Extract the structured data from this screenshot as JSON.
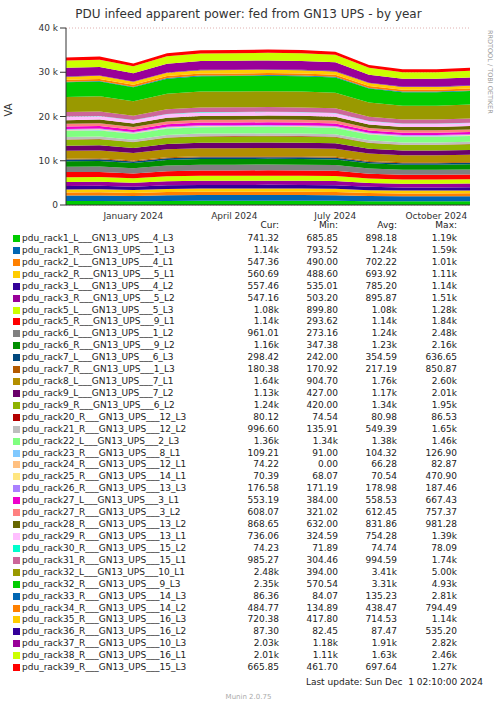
{
  "chart_data": {
    "type": "area",
    "title": "PDU infeed apparent power: fed from GN13 UPS - by year",
    "y_label": "VA",
    "side_text": "RRDTOOL / TOBI OETIKER",
    "footer": "Last update: Sun Dec  1 02:10:00 2024",
    "version": "Munin 2.0.75",
    "table_columns": [
      "Cur:",
      "Min:",
      "Avg:",
      "Max:"
    ],
    "stacked": true,
    "grid": true,
    "categories": [
      null,
      null,
      "January 2024",
      null,
      null,
      "April 2024",
      null,
      null,
      "July 2024",
      null,
      null,
      "October 2024",
      null
    ],
    "ylim": [
      0,
      40000
    ],
    "yticks": [
      0,
      {
        "value": 10000,
        "label": "10 k"
      },
      {
        "value": 20000,
        "label": "20 k"
      },
      {
        "value": 30000,
        "label": "30 k"
      },
      {
        "value": 40000,
        "label": "40 k"
      }
    ],
    "series": [
      {
        "name": "pdu_rack1_L___GN13_UPS___4_L3",
        "color": "#00CC00",
        "values": [
          900,
          905,
          865,
          925,
          945,
          945,
          950,
          945,
          935,
          855,
          830,
          830,
          835
        ],
        "stats": {
          "cur": "741.32",
          "min": "685.85",
          "avg": "898.18",
          "max": "1.19k"
        }
      },
      {
        "name": "pdu_rack1_R___GN13_UPS___1_L3",
        "color": "#0066B3",
        "values": [
          1240,
          1250,
          1190,
          1280,
          1300,
          1305,
          1300,
          1310,
          1290,
          1180,
          1140,
          1140,
          1150
        ],
        "stats": {
          "cur": "1.14k",
          "min": "793.52",
          "avg": "1.24k",
          "max": "1.59k"
        }
      },
      {
        "name": "pdu_rack2_L___GN13_UPS___4_L1",
        "color": "#FF8000",
        "values": [
          700,
          705,
          670,
          720,
          735,
          735,
          740,
          735,
          730,
          665,
          645,
          645,
          650
        ],
        "stats": {
          "cur": "547.36",
          "min": "490.00",
          "avg": "702.22",
          "max": "1.01k"
        }
      },
      {
        "name": "pdu_rack2_R___GN13_UPS___5_L1",
        "color": "#FFCC00",
        "values": [
          690,
          695,
          665,
          710,
          725,
          725,
          730,
          725,
          720,
          655,
          635,
          635,
          640
        ],
        "stats": {
          "cur": "560.69",
          "min": "488.60",
          "avg": "693.92",
          "max": "1.11k"
        }
      },
      {
        "name": "pdu_rack3_L___GN13_UPS___4_L2",
        "color": "#330099",
        "values": [
          785,
          790,
          755,
          810,
          825,
          825,
          830,
          825,
          815,
          745,
          720,
          720,
          730
        ],
        "stats": {
          "cur": "557.46",
          "min": "535.01",
          "avg": "785.20",
          "max": "1.14k"
        }
      },
      {
        "name": "pdu_rack3_R___GN13_UPS___5_L2",
        "color": "#990099",
        "values": [
          895,
          900,
          860,
          920,
          940,
          940,
          945,
          940,
          930,
          850,
          825,
          825,
          830
        ],
        "stats": {
          "cur": "547.16",
          "min": "503.20",
          "avg": "895.87",
          "max": "1.51k"
        }
      },
      {
        "name": "pdu_rack5_L___GN13_UPS___5_L3",
        "color": "#CCFF00",
        "values": [
          1080,
          1085,
          1035,
          1110,
          1135,
          1135,
          1140,
          1135,
          1125,
          1025,
          995,
          995,
          1005
        ],
        "stats": {
          "cur": "1.08k",
          "min": "899.80",
          "avg": "1.08k",
          "max": "1.28k"
        }
      },
      {
        "name": "pdu_rack5_R___GN13_UPS___9_L1",
        "color": "#FF0000",
        "values": [
          1140,
          1150,
          1095,
          1175,
          1195,
          1200,
          1200,
          1195,
          1185,
          1085,
          1050,
          1050,
          1060
        ],
        "stats": {
          "cur": "1.14k",
          "min": "293.62",
          "avg": "1.14k",
          "max": "1.84k"
        }
      },
      {
        "name": "pdu_rack6_L___GN13_UPS___1_L2",
        "color": "#808080",
        "values": [
          1240,
          1245,
          1190,
          1275,
          1300,
          1300,
          1305,
          1300,
          1290,
          1180,
          1140,
          1140,
          1150
        ],
        "stats": {
          "cur": "961.01",
          "min": "273.16",
          "avg": "1.24k",
          "max": "2.48k"
        }
      },
      {
        "name": "pdu_rack6_R___GN13_UPS___9_L2",
        "color": "#008F00",
        "values": [
          1230,
          1240,
          1180,
          1265,
          1290,
          1290,
          1295,
          1290,
          1280,
          1170,
          1130,
          1130,
          1145
        ],
        "stats": {
          "cur": "1.16k",
          "min": "347.38",
          "avg": "1.23k",
          "max": "2.16k"
        }
      },
      {
        "name": "pdu_rack7_L___GN13_UPS___6_L3",
        "color": "#00487D",
        "values": [
          355,
          355,
          340,
          365,
          375,
          375,
          375,
          375,
          370,
          335,
          325,
          325,
          330
        ],
        "stats": {
          "cur": "298.42",
          "min": "242.00",
          "avg": "354.59",
          "max": "636.65"
        }
      },
      {
        "name": "pdu_rack7_R___GN13_UPS___1_L3",
        "color": "#B35A00",
        "values": [
          217,
          219,
          208,
          224,
          228,
          228,
          230,
          228,
          226,
          206,
          200,
          200,
          202
        ],
        "stats": {
          "cur": "180.38",
          "min": "170.92",
          "avg": "217.19",
          "max": "850.87"
        }
      },
      {
        "name": "pdu_rack8_L___GN13_UPS___7_L1",
        "color": "#B38F00",
        "values": [
          1760,
          1770,
          1690,
          1810,
          1850,
          1850,
          1855,
          1850,
          1830,
          1670,
          1620,
          1620,
          1640
        ],
        "stats": {
          "cur": "1.64k",
          "min": "904.70",
          "avg": "1.76k",
          "max": "2.60k"
        }
      },
      {
        "name": "pdu_rack9_L___GN13_UPS___7_L2",
        "color": "#6B006B",
        "values": [
          1170,
          1175,
          1125,
          1205,
          1230,
          1230,
          1235,
          1230,
          1215,
          1110,
          1075,
          1075,
          1090
        ],
        "stats": {
          "cur": "1.13k",
          "min": "427.00",
          "avg": "1.17k",
          "max": "2.01k"
        }
      },
      {
        "name": "pdu_rack9_R___GN13_UPS___6_L2",
        "color": "#8FB300",
        "values": [
          1340,
          1350,
          1285,
          1380,
          1405,
          1410,
          1410,
          1405,
          1395,
          1275,
          1235,
          1235,
          1245
        ],
        "stats": {
          "cur": "1.24k",
          "min": "420.00",
          "avg": "1.34k",
          "max": "1.95k"
        }
      },
      {
        "name": "pdu_rack20_R___GN13_UPS___12_L3",
        "color": "#B30000",
        "values": [
          81,
          81,
          78,
          83,
          85,
          85,
          85,
          85,
          84,
          77,
          75,
          75,
          76
        ],
        "stats": {
          "cur": "80.12",
          "min": "74.54",
          "avg": "80.98",
          "max": "86.53"
        }
      },
      {
        "name": "pdu_rack21_R___GN13_UPS___12_L2",
        "color": "#BEBEBE",
        "values": [
          549,
          552,
          527,
          565,
          576,
          578,
          580,
          576,
          571,
          522,
          505,
          505,
          511
        ],
        "stats": {
          "cur": "996.60",
          "min": "135.91",
          "avg": "549.39",
          "max": "1.65k"
        }
      },
      {
        "name": "pdu_rack22_L___GN13_UPS___2_L3",
        "color": "#80FF80",
        "values": [
          1380,
          1390,
          1325,
          1420,
          1450,
          1450,
          1455,
          1450,
          1435,
          1310,
          1270,
          1270,
          1285
        ],
        "stats": {
          "cur": "1.36k",
          "min": "1.34k",
          "avg": "1.38k",
          "max": "1.46k"
        }
      },
      {
        "name": "pdu_rack23_R___GN13_UPS___8_L1",
        "color": "#80C9FF",
        "values": [
          104,
          105,
          100,
          107,
          109,
          109,
          110,
          109,
          108,
          99,
          96,
          96,
          97
        ],
        "stats": {
          "cur": "109.21",
          "min": "91.00",
          "avg": "104.32",
          "max": "126.90"
        }
      },
      {
        "name": "pdu_rack24_R___GN13_UPS___12_L1",
        "color": "#FFC080",
        "values": [
          66,
          67,
          63,
          68,
          69,
          69,
          70,
          69,
          69,
          63,
          61,
          61,
          62
        ],
        "stats": {
          "cur": "74.22",
          "min": "0.00",
          "avg": "66.28",
          "max": "82.87"
        }
      },
      {
        "name": "pdu_rack25_R___GN13_UPS___14_L1",
        "color": "#FFE680",
        "values": [
          71,
          71,
          68,
          73,
          75,
          75,
          75,
          75,
          74,
          67,
          65,
          65,
          66
        ],
        "stats": {
          "cur": "70.39",
          "min": "68.07",
          "avg": "70.54",
          "max": "470.90"
        }
      },
      {
        "name": "pdu_rack26_R___GN13_UPS___13_L3",
        "color": "#AA80FF",
        "values": [
          179,
          180,
          172,
          184,
          188,
          188,
          188,
          188,
          186,
          170,
          165,
          165,
          166
        ],
        "stats": {
          "cur": "176.58",
          "min": "171.19",
          "avg": "178.98",
          "max": "187.46"
        }
      },
      {
        "name": "pdu_rack27_L___GN13_UPS___3_L1",
        "color": "#EE00CC",
        "values": [
          558,
          561,
          536,
          575,
          586,
          588,
          590,
          586,
          580,
          530,
          513,
          513,
          519
        ],
        "stats": {
          "cur": "553.19",
          "min": "384.00",
          "avg": "558.53",
          "max": "667.43"
        }
      },
      {
        "name": "pdu_rack27_R___GN13_UPS___3_L2",
        "color": "#FF8080",
        "values": [
          612,
          616,
          588,
          630,
          643,
          645,
          646,
          643,
          636,
          581,
          563,
          563,
          569
        ],
        "stats": {
          "cur": "608.07",
          "min": "321.02",
          "avg": "612.45",
          "max": "757.37"
        }
      },
      {
        "name": "pdu_rack28_R___GN13_UPS___13_L2",
        "color": "#666600",
        "values": [
          832,
          838,
          799,
          857,
          874,
          875,
          878,
          874,
          865,
          790,
          765,
          765,
          774
        ],
        "stats": {
          "cur": "868.65",
          "min": "632.00",
          "avg": "831.86",
          "max": "981.28"
        }
      },
      {
        "name": "pdu_rack29_R___GN13_UPS___13_L1",
        "color": "#FFBFFF",
        "values": [
          754,
          759,
          724,
          777,
          792,
          793,
          795,
          792,
          784,
          716,
          694,
          694,
          701
        ],
        "stats": {
          "cur": "736.06",
          "min": "324.59",
          "avg": "754.28",
          "max": "1.39k"
        }
      },
      {
        "name": "pdu_rack30_R___GN13_UPS___15_L2",
        "color": "#00FFCC",
        "values": [
          75,
          75,
          72,
          77,
          79,
          79,
          79,
          79,
          78,
          71,
          69,
          69,
          70
        ],
        "stats": {
          "cur": "74.23",
          "min": "71.89",
          "avg": "74.74",
          "max": "78.09"
        }
      },
      {
        "name": "pdu_rack31_R___GN13_UPS___15_L1",
        "color": "#CC6699",
        "values": [
          995,
          1000,
          955,
          1025,
          1045,
          1045,
          1050,
          1045,
          1035,
          945,
          915,
          915,
          925
        ],
        "stats": {
          "cur": "985.27",
          "min": "304.46",
          "avg": "994.59",
          "max": "1.74k"
        }
      },
      {
        "name": "pdu_rack32_L___GN13_UPS___10_L1",
        "color": "#999900",
        "values": [
          3410,
          3430,
          3275,
          3510,
          3580,
          3585,
          3590,
          3580,
          3545,
          3240,
          3135,
          3135,
          3170
        ],
        "stats": {
          "cur": "2.48k",
          "min": "394.00",
          "avg": "3.41k",
          "max": "5.00k"
        }
      },
      {
        "name": "pdu_rack32_R___GN13_UPS___9_L3",
        "color": "#00CC00",
        "values": [
          3310,
          3330,
          3180,
          3410,
          3475,
          3480,
          3485,
          3475,
          3440,
          3145,
          3045,
          3045,
          3080
        ],
        "stats": {
          "cur": "2.35k",
          "min": "570.54",
          "avg": "3.31k",
          "max": "4.93k"
        }
      },
      {
        "name": "pdu_rack33_R___GN13_UPS___14_L3",
        "color": "#0066B3",
        "values": [
          135,
          136,
          130,
          139,
          142,
          142,
          142,
          142,
          140,
          128,
          124,
          124,
          126
        ],
        "stats": {
          "cur": "86.36",
          "min": "84.07",
          "avg": "135.23",
          "max": "2.81k"
        }
      },
      {
        "name": "pdu_rack34_R___GN13_UPS___14_L2",
        "color": "#FF8000",
        "values": [
          438,
          441,
          420,
          451,
          460,
          460,
          461,
          460,
          455,
          416,
          403,
          403,
          407
        ],
        "stats": {
          "cur": "484.77",
          "min": "134.89",
          "avg": "438.47",
          "max": "794.49"
        }
      },
      {
        "name": "pdu_rack35_R___GN13_UPS___16_L3",
        "color": "#FFCC00",
        "values": [
          715,
          720,
          686,
          736,
          751,
          752,
          754,
          751,
          744,
          679,
          658,
          658,
          665
        ],
        "stats": {
          "cur": "720.38",
          "min": "417.80",
          "avg": "714.53",
          "max": "1.14k"
        }
      },
      {
        "name": "pdu_rack36_R___GN13_UPS___16_L2",
        "color": "#330099",
        "values": [
          87,
          88,
          84,
          90,
          91,
          91,
          92,
          91,
          90,
          83,
          80,
          80,
          81
        ],
        "stats": {
          "cur": "87.30",
          "min": "82.45",
          "avg": "87.47",
          "max": "535.20"
        }
      },
      {
        "name": "pdu_rack37_R___GN13_UPS___10_L3",
        "color": "#990099",
        "values": [
          1910,
          1920,
          1835,
          1965,
          2005,
          2010,
          2010,
          2005,
          1985,
          1815,
          1755,
          1755,
          1775
        ],
        "stats": {
          "cur": "2.03k",
          "min": "1.18k",
          "avg": "1.91k",
          "max": "2.82k"
        }
      },
      {
        "name": "pdu_rack38_R___GN13_UPS___16_L1",
        "color": "#CCFF00",
        "values": [
          1630,
          1640,
          1565,
          1680,
          1710,
          1715,
          1715,
          1710,
          1695,
          1550,
          1500,
          1500,
          1515
        ],
        "stats": {
          "cur": "2.01k",
          "min": "1.11k",
          "avg": "1.63k",
          "max": "2.46k"
        }
      },
      {
        "name": "pdu_rack39_R___GN13_UPS___15_L3",
        "color": "#FF0000",
        "values": [
          698,
          702,
          670,
          719,
          733,
          734,
          736,
          733,
          726,
          663,
          642,
          642,
          649
        ],
        "stats": {
          "cur": "665.85",
          "min": "461.70",
          "avg": "697.64",
          "max": "1.27k"
        }
      }
    ]
  }
}
